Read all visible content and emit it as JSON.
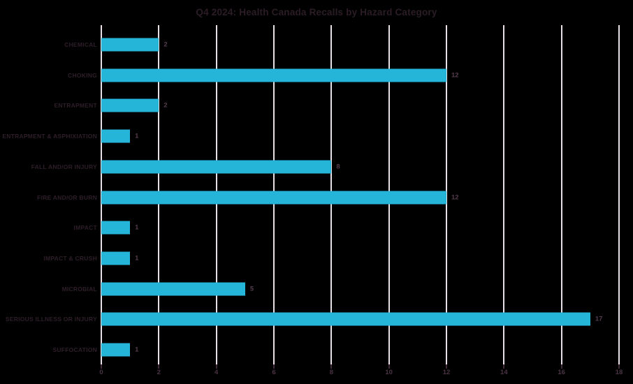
{
  "title": "Q4 2024: Health Canada Recalls by Hazard Category",
  "chart_data": {
    "type": "bar",
    "orientation": "horizontal",
    "title": "Q4 2024: Health Canada Recalls by Hazard Category",
    "categories": [
      "CHEMICAL",
      "CHOKING",
      "ENTRAPMENT",
      "ENTRAPMENT & ASPHIXIATION",
      "FALL AND/OR INJURY",
      "FIRE AND/OR BURN",
      "IMPACT",
      "IMPACT & CRUSH",
      "MICROBIAL",
      "SERIOUS ILLNESS OR INJURY",
      "SUFFOCATION"
    ],
    "values": [
      2,
      12,
      2,
      1,
      8,
      12,
      1,
      1,
      5,
      17,
      1
    ],
    "data_labels": [
      2,
      12,
      2,
      1,
      8,
      12,
      1,
      1,
      5,
      17,
      1
    ],
    "xlabel": "",
    "ylabel": "",
    "xlim": [
      0,
      18
    ],
    "x_ticks": [
      0,
      2,
      4,
      6,
      8,
      10,
      12,
      14,
      16,
      18
    ],
    "grid": "vertical-only",
    "legend": "none",
    "colors": {
      "background": "#000000",
      "bar": "#25b5d8",
      "gridline": "#e9dfe6",
      "title_text": "#2b1c26",
      "category_text": "#2e1e29",
      "value_text": "#553c4e",
      "tick_text": "#4a3344",
      "tick_mark": "#3f2b39"
    }
  }
}
